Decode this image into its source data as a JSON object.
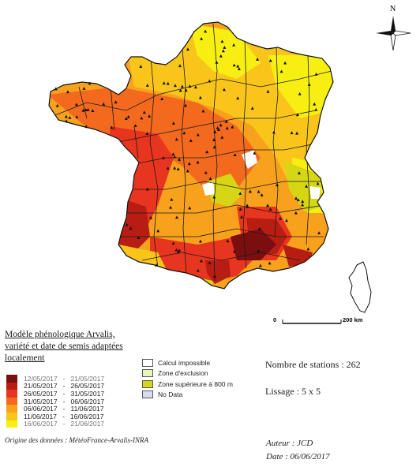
{
  "map": {
    "title_lines": [
      "Modèle phénologique Arvalis,",
      "variété et date de semis adaptées",
      "localement"
    ],
    "north_label": "N",
    "scale": {
      "start": "0",
      "end": "200 km"
    },
    "colors": {
      "c1": "#7b0f0f",
      "c2": "#b81d13",
      "c3": "#e8351f",
      "c4": "#f36a1f",
      "c5": "#f7a11c",
      "c6": "#f9c51b",
      "c7": "#f7ef12",
      "zone_superieure": "#d6d614",
      "exclusion": "#e8f5c0",
      "no_data": "#dcdcf0"
    }
  },
  "legend": {
    "date_classes": [
      {
        "range": "12/05/2017   -   21/05/2017",
        "color": "#7b0f0f"
      },
      {
        "range": "21/05/2017   -   26/05/2017",
        "color": "#b81d13"
      },
      {
        "range": "26/05/2017   -   31/05/2017",
        "color": "#e8351f"
      },
      {
        "range": "31/05/2017   -   06/06/2017",
        "color": "#f36a1f"
      },
      {
        "range": "06/06/2017   -   11/06/2017",
        "color": "#f7a11c"
      },
      {
        "range": "11/06/2017   -   16/06/2017",
        "color": "#f9c51b"
      },
      {
        "range": "16/06/2017   -   21/06/2017",
        "color": "#f7ef12"
      }
    ],
    "categories": [
      {
        "label": "Calcul impossible",
        "color": "#ffffff"
      },
      {
        "label": "Zone d'exclusion",
        "color": "#e8f5c0"
      },
      {
        "label": "Zone supérieure à 800 m",
        "color": "#d6d614"
      },
      {
        "label": "No Data",
        "color": "#dcdcf0"
      }
    ]
  },
  "info": {
    "stations": "Nombre de stations : 262",
    "lissage": "Lissage : 5 x 5"
  },
  "footer": {
    "origin": "Origine des données : MétéoFrance-Arvalis-INRA",
    "auteur": "Auteur : JCD",
    "date": "Date : 06/06/2017"
  }
}
